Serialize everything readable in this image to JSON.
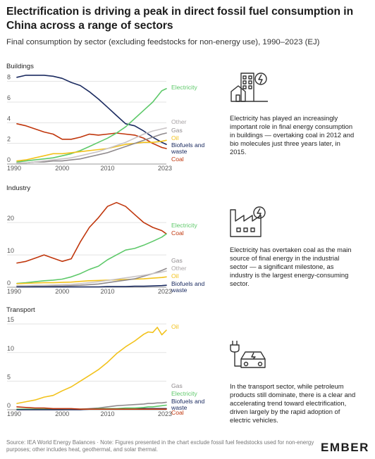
{
  "title": "Electrification is driving a peak in direct fossil fuel consumption in China across a range of sectors",
  "subtitle": "Final consumption by sector (excluding feedstocks for non-energy use), 1990–2023 (EJ)",
  "colors": {
    "Electricity": "#5ec96a",
    "Coal": "#c0360c",
    "Oil": "#f2c21b",
    "Gas": "#8f8a8d",
    "Other": "#c9c4c6",
    "Biofuels and waste": "#1b2b60"
  },
  "panels": [
    {
      "title": "Buildings",
      "icon": "buildings-icon",
      "note": "Electricity has played an increasingly important role in final energy consumption in buildings — overtaking coal in 2012 and bio molecules just three years later, in 2015.",
      "chart_data": {
        "type": "line",
        "x": [
          1990,
          1992,
          1994,
          1996,
          1998,
          2000,
          2002,
          2004,
          2006,
          2008,
          2010,
          2012,
          2014,
          2016,
          2018,
          2020,
          2022,
          2023
        ],
        "xticks": [
          1990,
          2000,
          2010,
          2023
        ],
        "yticks": [
          0,
          2,
          4,
          6,
          8
        ],
        "ylim": [
          0,
          9
        ],
        "series": [
          {
            "name": "Biofuels and waste",
            "values": [
              8.4,
              8.6,
              8.6,
              8.6,
              8.5,
              8.3,
              7.9,
              7.6,
              7.0,
              6.3,
              5.5,
              4.7,
              3.9,
              3.7,
              3.2,
              2.6,
              2.1,
              1.9
            ]
          },
          {
            "name": "Coal",
            "values": [
              3.9,
              3.7,
              3.4,
              3.1,
              2.9,
              2.4,
              2.4,
              2.6,
              2.9,
              2.8,
              2.9,
              3.0,
              2.9,
              2.8,
              2.5,
              2.0,
              1.6,
              1.5
            ]
          },
          {
            "name": "Electricity",
            "values": [
              0.2,
              0.3,
              0.4,
              0.5,
              0.6,
              0.8,
              1.0,
              1.3,
              1.7,
              2.1,
              2.5,
              3.0,
              3.6,
              4.4,
              5.2,
              6.0,
              7.1,
              7.3
            ]
          },
          {
            "name": "Oil",
            "values": [
              0.3,
              0.4,
              0.6,
              0.8,
              1.0,
              1.0,
              1.1,
              1.2,
              1.3,
              1.4,
              1.5,
              1.7,
              1.9,
              2.0,
              2.1,
              2.1,
              2.2,
              2.3
            ]
          },
          {
            "name": "Gas",
            "values": [
              0.1,
              0.1,
              0.2,
              0.2,
              0.3,
              0.3,
              0.4,
              0.5,
              0.7,
              0.9,
              1.1,
              1.4,
              1.7,
              2.0,
              2.3,
              2.6,
              2.9,
              3.0
            ]
          },
          {
            "name": "Other",
            "values": [
              0.1,
              0.1,
              0.2,
              0.3,
              0.4,
              0.5,
              0.6,
              0.8,
              1.0,
              1.2,
              1.5,
              1.8,
              2.1,
              2.5,
              2.9,
              3.2,
              3.4,
              3.5
            ]
          }
        ],
        "labels": [
          "Electricity",
          "Other",
          "Gas",
          "Oil",
          "Biofuels and waste",
          "Coal"
        ]
      }
    },
    {
      "title": "Industry",
      "icon": "factory-icon",
      "note": "Electricity has overtaken coal as the main source of final energy in the industrial sector — a significant milestone, as industry is the largest energy-consuming sector.",
      "chart_data": {
        "type": "line",
        "x": [
          1990,
          1992,
          1994,
          1996,
          1998,
          2000,
          2002,
          2004,
          2006,
          2008,
          2010,
          2012,
          2014,
          2016,
          2018,
          2020,
          2022,
          2023
        ],
        "xticks": [
          1990,
          2000,
          2010,
          2023
        ],
        "yticks": [
          0,
          10,
          20
        ],
        "ylim": [
          0,
          27
        ],
        "series": [
          {
            "name": "Coal",
            "values": [
              7.5,
              8.0,
              9.0,
              10.0,
              9.0,
              8.0,
              8.8,
              14.0,
              18.5,
              21.5,
              25.0,
              26.2,
              25.0,
              22.5,
              20.0,
              18.5,
              17.5,
              16.5
            ]
          },
          {
            "name": "Electricity",
            "values": [
              1.2,
              1.4,
              1.7,
              2.0,
              2.2,
              2.5,
              3.2,
              4.2,
              5.5,
              6.5,
              8.5,
              10.0,
              11.5,
              12.0,
              13.0,
              14.2,
              15.5,
              16.5
            ]
          },
          {
            "name": "Oil",
            "values": [
              1.1,
              1.2,
              1.3,
              1.4,
              1.4,
              1.5,
              1.6,
              1.8,
              2.0,
              2.1,
              2.2,
              2.3,
              2.4,
              2.5,
              2.6,
              2.8,
              3.0,
              3.2
            ]
          },
          {
            "name": "Gas",
            "values": [
              0.3,
              0.3,
              0.3,
              0.4,
              0.4,
              0.4,
              0.5,
              0.6,
              0.8,
              1.0,
              1.4,
              1.8,
              2.2,
              2.6,
              3.4,
              4.2,
              5.2,
              5.8
            ]
          },
          {
            "name": "Other",
            "values": [
              0.5,
              0.5,
              0.6,
              0.6,
              0.7,
              0.8,
              0.9,
              1.1,
              1.4,
              1.7,
              2.1,
              2.5,
              2.9,
              3.3,
              3.7,
              4.2,
              4.7,
              5.0
            ]
          },
          {
            "name": "Biofuels and waste",
            "values": [
              0.1,
              0.1,
              0.1,
              0.1,
              0.1,
              0.1,
              0.1,
              0.1,
              0.1,
              0.1,
              0.2,
              0.2,
              0.2,
              0.3,
              0.3,
              0.4,
              0.5,
              0.6
            ]
          }
        ],
        "labels": [
          "Electricity",
          "Coal",
          "Gas",
          "Other",
          "Oil",
          "Biofuels and waste"
        ]
      }
    },
    {
      "title": "Transport",
      "icon": "electric-car-icon",
      "note": "In the transport sector, while petroleum products still dominate, there is a clear and accelerating trend toward electrification, driven largely by the rapid adoption of electric vehicles.",
      "chart_data": {
        "type": "line",
        "x": [
          1990,
          1992,
          1994,
          1996,
          1998,
          2000,
          2002,
          2004,
          2006,
          2008,
          2010,
          2012,
          2014,
          2016,
          2018,
          2019,
          2020,
          2021,
          2022,
          2023
        ],
        "xticks": [
          1990,
          2000,
          2010,
          2023
        ],
        "yticks": [
          0,
          5,
          10,
          15
        ],
        "ylim": [
          0,
          16
        ],
        "series": [
          {
            "name": "Oil",
            "values": [
              1.1,
              1.4,
              1.7,
              2.2,
              2.5,
              3.3,
              4.0,
              5.0,
              6.0,
              7.0,
              8.3,
              9.8,
              11.0,
              12.0,
              13.2,
              13.6,
              13.5,
              14.4,
              13.1,
              13.9
            ]
          },
          {
            "name": "Gas",
            "values": [
              0.0,
              0.0,
              0.0,
              0.0,
              0.0,
              0.0,
              0.1,
              0.1,
              0.2,
              0.3,
              0.5,
              0.7,
              0.8,
              0.9,
              1.0,
              1.1,
              1.1,
              1.2,
              1.2,
              1.3
            ]
          },
          {
            "name": "Electricity",
            "values": [
              0.1,
              0.1,
              0.1,
              0.1,
              0.1,
              0.1,
              0.1,
              0.1,
              0.1,
              0.2,
              0.2,
              0.2,
              0.3,
              0.3,
              0.4,
              0.5,
              0.5,
              0.6,
              0.7,
              0.8
            ]
          },
          {
            "name": "Biofuels and waste",
            "values": [
              0.0,
              0.0,
              0.0,
              0.0,
              0.0,
              0.0,
              0.0,
              0.0,
              0.1,
              0.1,
              0.1,
              0.1,
              0.1,
              0.1,
              0.2,
              0.2,
              0.2,
              0.2,
              0.2,
              0.2
            ]
          },
          {
            "name": "Coal",
            "values": [
              0.5,
              0.4,
              0.3,
              0.3,
              0.2,
              0.2,
              0.2,
              0.1,
              0.1,
              0.1,
              0.1,
              0.1,
              0.1,
              0.1,
              0.1,
              0.1,
              0.1,
              0.1,
              0.1,
              0.1
            ]
          }
        ],
        "labels": [
          "Oil",
          "Gas",
          "Electricity",
          "Biofuels and waste",
          "Coal"
        ]
      }
    }
  ],
  "footer": {
    "source": "Source: IEA World Energy Balances · Note: Figures presented in the chart exclude fossil fuel feedstocks used for non-energy purposes; other includes heat, geothermal, and solar thermal.",
    "logo": "EMBER"
  }
}
